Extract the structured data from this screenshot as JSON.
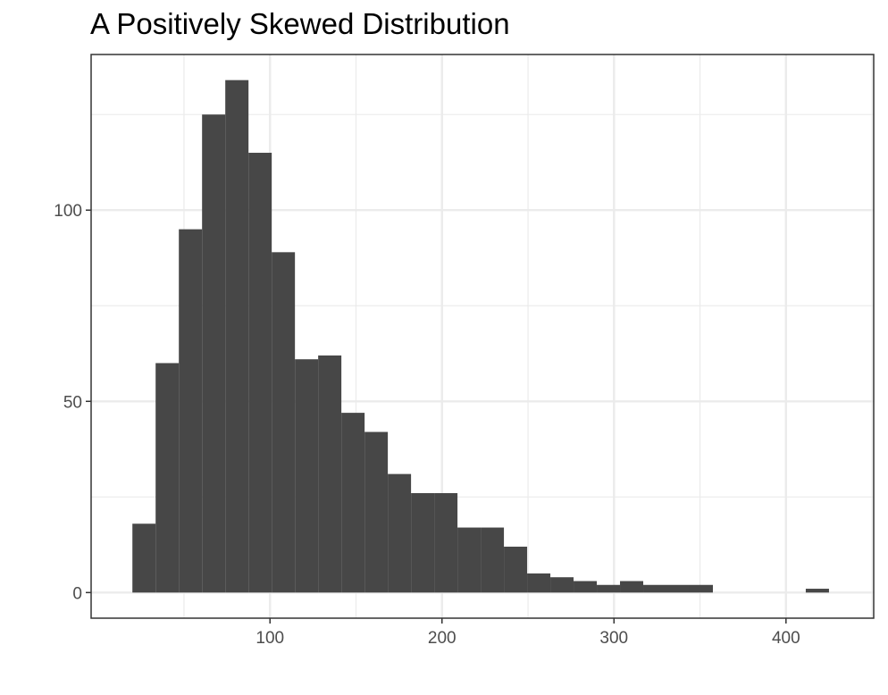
{
  "chart_data": {
    "type": "bar",
    "title": "A Positively Skewed Distribution",
    "xlabel": "",
    "ylabel": "",
    "bin_width": 13.5,
    "bins": [
      {
        "x0": 20,
        "x1": 33.5,
        "count": 18
      },
      {
        "x0": 33.5,
        "x1": 47,
        "count": 60
      },
      {
        "x0": 47,
        "x1": 60.5,
        "count": 95
      },
      {
        "x0": 60.5,
        "x1": 74,
        "count": 125
      },
      {
        "x0": 74,
        "x1": 87.5,
        "count": 134
      },
      {
        "x0": 87.5,
        "x1": 101,
        "count": 115
      },
      {
        "x0": 101,
        "x1": 114.5,
        "count": 89
      },
      {
        "x0": 114.5,
        "x1": 128,
        "count": 61
      },
      {
        "x0": 128,
        "x1": 141.5,
        "count": 62
      },
      {
        "x0": 141.5,
        "x1": 155,
        "count": 47
      },
      {
        "x0": 155,
        "x1": 168.5,
        "count": 42
      },
      {
        "x0": 168.5,
        "x1": 182,
        "count": 31
      },
      {
        "x0": 182,
        "x1": 195.5,
        "count": 26
      },
      {
        "x0": 195.5,
        "x1": 209,
        "count": 26
      },
      {
        "x0": 209,
        "x1": 222.5,
        "count": 17
      },
      {
        "x0": 222.5,
        "x1": 236,
        "count": 17
      },
      {
        "x0": 236,
        "x1": 249.5,
        "count": 12
      },
      {
        "x0": 249.5,
        "x1": 263,
        "count": 5
      },
      {
        "x0": 263,
        "x1": 276.5,
        "count": 4
      },
      {
        "x0": 276.5,
        "x1": 290,
        "count": 3
      },
      {
        "x0": 290,
        "x1": 303.5,
        "count": 2
      },
      {
        "x0": 303.5,
        "x1": 317,
        "count": 3
      },
      {
        "x0": 317,
        "x1": 330.5,
        "count": 2
      },
      {
        "x0": 330.5,
        "x1": 344,
        "count": 2
      },
      {
        "x0": 344,
        "x1": 357.5,
        "count": 2
      },
      {
        "x0": 357.5,
        "x1": 371,
        "count": 0
      },
      {
        "x0": 371,
        "x1": 384.5,
        "count": 0
      },
      {
        "x0": 384.5,
        "x1": 398,
        "count": 0
      },
      {
        "x0": 398,
        "x1": 411.5,
        "count": 0
      },
      {
        "x0": 411.5,
        "x1": 425,
        "count": 1
      }
    ],
    "xlim": [
      -4,
      451
    ],
    "ylim": [
      -6.7,
      140.7
    ],
    "x_ticks": [
      100,
      200,
      300,
      400
    ],
    "x_tick_labels": [
      "100",
      "200",
      "300",
      "400"
    ],
    "y_ticks": [
      0,
      50,
      100
    ],
    "y_tick_labels": [
      "0",
      "50",
      "100"
    ],
    "x_minor_gridlines": [
      50,
      150,
      250,
      350,
      450
    ],
    "y_minor_gridlines": [
      25,
      75,
      125
    ],
    "grid": true,
    "legend": "none",
    "bar_color": "#474747",
    "grid_color": "#ebebeb",
    "panel_border_color": "#333333",
    "tick_label_color": "#4d4d4d"
  }
}
